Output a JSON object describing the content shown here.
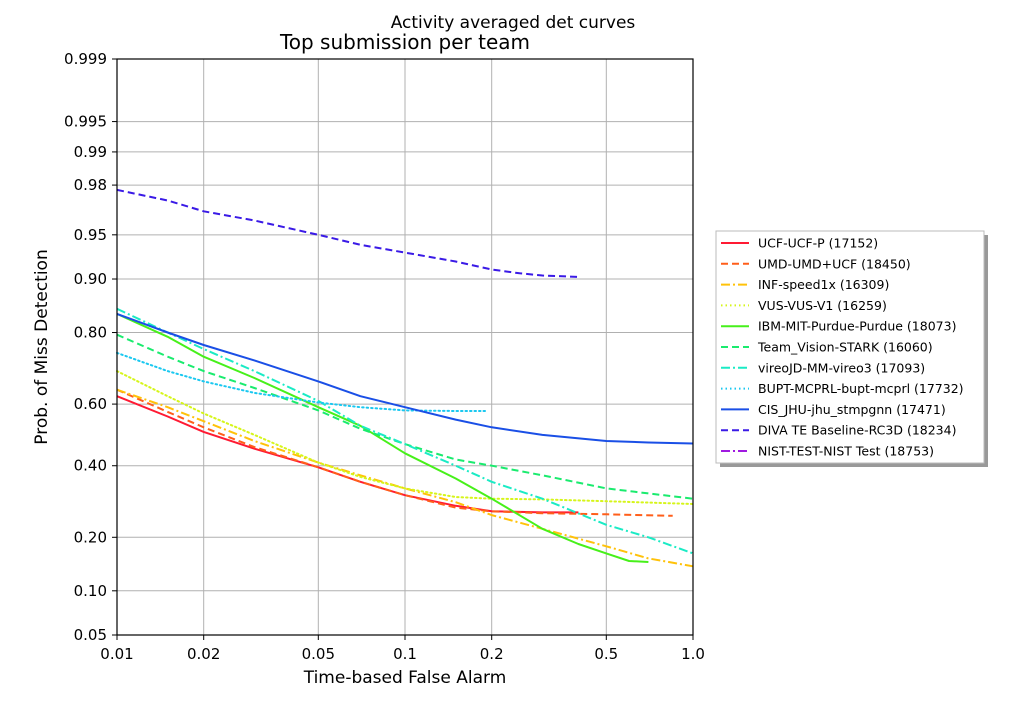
{
  "chart_data": {
    "type": "line",
    "suptitle": "Activity averaged det curves",
    "title": "Top submission per team",
    "xlabel": "Time-based False Alarm",
    "ylabel": "Prob. of Miss Detection",
    "x_scale": "log",
    "y_scale": "normal-deviate",
    "xlim": [
      0.01,
      1.0
    ],
    "ylim": [
      0.05,
      0.999
    ],
    "x_ticks": [
      0.01,
      0.02,
      0.05,
      0.1,
      0.2,
      0.5,
      1.0
    ],
    "x_tick_labels": [
      "0.01",
      "0.02",
      "0.05",
      "0.1",
      "0.2",
      "0.5",
      "1.0"
    ],
    "y_ticks": [
      0.05,
      0.1,
      0.2,
      0.4,
      0.6,
      0.8,
      0.9,
      0.95,
      0.98,
      0.99,
      0.995,
      0.999
    ],
    "y_tick_labels": [
      "0.05",
      "0.10",
      "0.20",
      "0.40",
      "0.60",
      "0.80",
      "0.90",
      "0.95",
      "0.98",
      "0.99",
      "0.995",
      "0.999"
    ],
    "grid": true,
    "legend_position": "right",
    "series": [
      {
        "name": "UCF-UCF-P (17152)",
        "color": "#ff1a33",
        "dash": "solid",
        "x": [
          0.01,
          0.015,
          0.02,
          0.03,
          0.05,
          0.07,
          0.1,
          0.15,
          0.2,
          0.3,
          0.4
        ],
        "y": [
          0.625,
          0.56,
          0.51,
          0.455,
          0.395,
          0.35,
          0.31,
          0.28,
          0.265,
          0.262,
          0.262
        ]
      },
      {
        "name": "UMD-UMD+UCF (18450)",
        "color": "#ff5e1a",
        "dash": "dashed",
        "x": [
          0.01,
          0.015,
          0.02,
          0.03,
          0.05,
          0.07,
          0.1,
          0.15,
          0.2,
          0.3,
          0.5,
          0.85
        ],
        "y": [
          0.645,
          0.575,
          0.525,
          0.46,
          0.395,
          0.35,
          0.31,
          0.275,
          0.265,
          0.26,
          0.257,
          0.253
        ]
      },
      {
        "name": "INF-speed1x (16309)",
        "color": "#ffc20a",
        "dash": "dashdot",
        "x": [
          0.01,
          0.015,
          0.02,
          0.03,
          0.05,
          0.07,
          0.1,
          0.15,
          0.2,
          0.3,
          0.5,
          0.7,
          1.0
        ],
        "y": [
          0.645,
          0.59,
          0.545,
          0.48,
          0.41,
          0.37,
          0.33,
          0.29,
          0.255,
          0.22,
          0.18,
          0.155,
          0.14
        ]
      },
      {
        "name": "VUS-VUS-V1 (16259)",
        "color": "#d6f51a",
        "dash": "dotted",
        "x": [
          0.01,
          0.015,
          0.02,
          0.03,
          0.05,
          0.07,
          0.1,
          0.15,
          0.2,
          0.3,
          0.5,
          1.0
        ],
        "y": [
          0.7,
          0.625,
          0.57,
          0.5,
          0.41,
          0.365,
          0.33,
          0.305,
          0.3,
          0.298,
          0.293,
          0.285
        ]
      },
      {
        "name": "IBM-MIT-Purdue-Purdue (18073)",
        "color": "#47f01a",
        "dash": "solid",
        "x": [
          0.01,
          0.015,
          0.02,
          0.03,
          0.05,
          0.07,
          0.1,
          0.15,
          0.2,
          0.3,
          0.4,
          0.5,
          0.6,
          0.7
        ],
        "y": [
          0.84,
          0.79,
          0.74,
          0.68,
          0.59,
          0.53,
          0.44,
          0.36,
          0.3,
          0.22,
          0.185,
          0.165,
          0.15,
          0.148
        ]
      },
      {
        "name": "Team_Vision-STARK (16060)",
        "color": "#1aeb6e",
        "dash": "dashed",
        "x": [
          0.01,
          0.015,
          0.02,
          0.03,
          0.05,
          0.07,
          0.1,
          0.15,
          0.2,
          0.3,
          0.5,
          1.0
        ],
        "y": [
          0.795,
          0.74,
          0.7,
          0.65,
          0.58,
          0.52,
          0.47,
          0.42,
          0.4,
          0.37,
          0.33,
          0.3
        ]
      },
      {
        "name": "vireoJD-MM-vireo3 (17093)",
        "color": "#1aebc5",
        "dash": "dashdot",
        "x": [
          0.01,
          0.015,
          0.02,
          0.03,
          0.05,
          0.07,
          0.1,
          0.15,
          0.2,
          0.3,
          0.5,
          0.7,
          1.0
        ],
        "y": [
          0.85,
          0.8,
          0.76,
          0.7,
          0.61,
          0.53,
          0.47,
          0.4,
          0.35,
          0.3,
          0.23,
          0.2,
          0.165
        ]
      },
      {
        "name": "BUPT-MCPRL-bupt-mcprl (17732)",
        "color": "#1ac8f0",
        "dash": "dotted",
        "x": [
          0.01,
          0.015,
          0.02,
          0.03,
          0.05,
          0.07,
          0.1,
          0.15,
          0.19
        ],
        "y": [
          0.75,
          0.7,
          0.67,
          0.635,
          0.605,
          0.59,
          0.58,
          0.578,
          0.578
        ]
      },
      {
        "name": "CIS_JHU-jhu_stmpgnn (17471)",
        "color": "#1a4fe6",
        "dash": "solid",
        "x": [
          0.01,
          0.015,
          0.02,
          0.03,
          0.05,
          0.07,
          0.1,
          0.15,
          0.2,
          0.3,
          0.5,
          0.7,
          1.0
        ],
        "y": [
          0.84,
          0.8,
          0.77,
          0.73,
          0.67,
          0.625,
          0.59,
          0.55,
          0.525,
          0.5,
          0.48,
          0.475,
          0.472
        ]
      },
      {
        "name": "DIVA TE Baseline-RC3D (18234)",
        "color": "#3a1ae6",
        "dash": "dashed",
        "x": [
          0.01,
          0.015,
          0.02,
          0.03,
          0.05,
          0.07,
          0.1,
          0.15,
          0.2,
          0.25,
          0.3,
          0.4
        ],
        "y": [
          0.978,
          0.973,
          0.967,
          0.961,
          0.95,
          0.941,
          0.933,
          0.923,
          0.913,
          0.908,
          0.905,
          0.903
        ]
      },
      {
        "name": "NIST-TEST-NIST Test (18753)",
        "color": "#a01ae0",
        "dash": "dashdot",
        "x": [],
        "y": []
      }
    ]
  }
}
